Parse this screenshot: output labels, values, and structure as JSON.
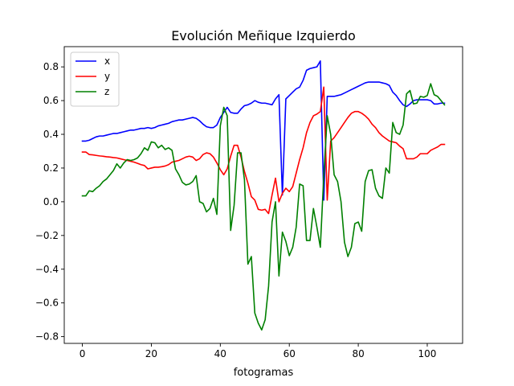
{
  "chart_data": {
    "type": "line",
    "title": "Evolución Meñique Izquierdo",
    "xlabel": "fotogramas",
    "ylabel": "",
    "xlim": [
      -5.25,
      110.25
    ],
    "ylim": [
      -0.84,
      0.92
    ],
    "xticks": [
      0,
      20,
      40,
      60,
      80,
      100
    ],
    "yticks": [
      -0.8,
      -0.6,
      -0.4,
      -0.2,
      0.0,
      0.2,
      0.4,
      0.6,
      0.8
    ],
    "ytick_labels": [
      "−0.8",
      "−0.6",
      "−0.4",
      "−0.2",
      "0.0",
      "0.2",
      "0.4",
      "0.6",
      "0.8"
    ],
    "grid": false,
    "legend_position": "top-left",
    "x": [
      0,
      1,
      2,
      3,
      4,
      5,
      6,
      7,
      8,
      9,
      10,
      11,
      12,
      13,
      14,
      15,
      16,
      17,
      18,
      19,
      20,
      21,
      22,
      23,
      24,
      25,
      26,
      27,
      28,
      29,
      30,
      31,
      32,
      33,
      34,
      35,
      36,
      37,
      38,
      39,
      40,
      41,
      42,
      43,
      44,
      45,
      46,
      47,
      48,
      49,
      50,
      51,
      52,
      53,
      54,
      55,
      56,
      57,
      58,
      59,
      60,
      61,
      62,
      63,
      64,
      65,
      66,
      67,
      68,
      69,
      70,
      71,
      72,
      73,
      74,
      75,
      76,
      77,
      78,
      79,
      80,
      81,
      82,
      83,
      84,
      85,
      86,
      87,
      88,
      89,
      90,
      91,
      92,
      93,
      94,
      95,
      96,
      97,
      98,
      99,
      100,
      101,
      102,
      103,
      104,
      105
    ],
    "series": [
      {
        "name": "x",
        "color": "#0000ff",
        "values": [
          0.36,
          0.36,
          0.365,
          0.375,
          0.385,
          0.39,
          0.39,
          0.395,
          0.4,
          0.405,
          0.405,
          0.41,
          0.415,
          0.42,
          0.425,
          0.425,
          0.43,
          0.435,
          0.435,
          0.44,
          0.435,
          0.44,
          0.45,
          0.455,
          0.46,
          0.465,
          0.475,
          0.48,
          0.485,
          0.485,
          0.49,
          0.495,
          0.5,
          0.495,
          0.48,
          0.46,
          0.445,
          0.44,
          0.44,
          0.455,
          0.5,
          0.53,
          0.56,
          0.53,
          0.525,
          0.525,
          0.55,
          0.57,
          0.575,
          0.585,
          0.6,
          0.59,
          0.585,
          0.585,
          0.58,
          0.575,
          0.61,
          0.635,
          0.04,
          0.61,
          0.63,
          0.65,
          0.67,
          0.68,
          0.72,
          0.78,
          0.79,
          0.795,
          0.8,
          0.835,
          0.01,
          0.625,
          0.625,
          0.625,
          0.63,
          0.635,
          0.645,
          0.655,
          0.665,
          0.675,
          0.685,
          0.695,
          0.705,
          0.71,
          0.71,
          0.71,
          0.71,
          0.705,
          0.7,
          0.69,
          0.65,
          0.63,
          0.6,
          0.575,
          0.565,
          0.58,
          0.6,
          0.605,
          0.605,
          0.605,
          0.605,
          0.6,
          0.58,
          0.58,
          0.585,
          0.585
        ]
      },
      {
        "name": "y",
        "color": "#ff0000",
        "values": [
          0.295,
          0.295,
          0.28,
          0.278,
          0.275,
          0.272,
          0.27,
          0.267,
          0.265,
          0.262,
          0.26,
          0.255,
          0.25,
          0.245,
          0.24,
          0.235,
          0.228,
          0.22,
          0.215,
          0.195,
          0.2,
          0.205,
          0.205,
          0.208,
          0.212,
          0.22,
          0.235,
          0.24,
          0.245,
          0.255,
          0.265,
          0.27,
          0.265,
          0.245,
          0.255,
          0.28,
          0.29,
          0.285,
          0.265,
          0.23,
          0.19,
          0.16,
          0.195,
          0.27,
          0.335,
          0.335,
          0.265,
          0.18,
          0.11,
          0.03,
          0.01,
          -0.045,
          -0.05,
          -0.045,
          -0.07,
          0.04,
          0.14,
          0.0,
          0.05,
          0.08,
          0.06,
          0.09,
          0.17,
          0.25,
          0.32,
          0.41,
          0.47,
          0.51,
          0.52,
          0.535,
          0.68,
          0.01,
          0.36,
          0.38,
          0.41,
          0.44,
          0.47,
          0.5,
          0.525,
          0.535,
          0.535,
          0.525,
          0.51,
          0.49,
          0.46,
          0.44,
          0.41,
          0.39,
          0.375,
          0.36,
          0.355,
          0.35,
          0.33,
          0.315,
          0.255,
          0.255,
          0.255,
          0.265,
          0.285,
          0.285,
          0.285,
          0.305,
          0.315,
          0.325,
          0.34,
          0.34
        ]
      },
      {
        "name": "z",
        "color": "#008000",
        "values": [
          0.035,
          0.035,
          0.065,
          0.06,
          0.08,
          0.095,
          0.12,
          0.135,
          0.16,
          0.185,
          0.225,
          0.2,
          0.23,
          0.25,
          0.245,
          0.25,
          0.26,
          0.285,
          0.32,
          0.305,
          0.355,
          0.35,
          0.32,
          0.335,
          0.31,
          0.32,
          0.305,
          0.195,
          0.16,
          0.115,
          0.1,
          0.105,
          0.12,
          0.155,
          0.0,
          -0.01,
          -0.06,
          -0.04,
          0.02,
          -0.075,
          0.45,
          0.56,
          0.51,
          -0.17,
          -0.02,
          0.29,
          0.29,
          0.13,
          -0.37,
          -0.325,
          -0.66,
          -0.72,
          -0.76,
          -0.7,
          -0.5,
          -0.12,
          0.0,
          -0.44,
          -0.18,
          -0.235,
          -0.32,
          -0.27,
          -0.15,
          0.105,
          0.095,
          -0.23,
          -0.23,
          -0.04,
          -0.15,
          -0.27,
          0.155,
          0.51,
          0.4,
          0.16,
          0.12,
          0.0,
          -0.24,
          -0.325,
          -0.27,
          -0.13,
          -0.12,
          -0.175,
          0.12,
          0.185,
          0.19,
          0.08,
          0.035,
          0.02,
          0.2,
          0.17,
          0.47,
          0.41,
          0.4,
          0.455,
          0.64,
          0.66,
          0.58,
          0.585,
          0.625,
          0.62,
          0.63,
          0.7,
          0.635,
          0.625,
          0.6,
          0.575
        ]
      }
    ]
  }
}
